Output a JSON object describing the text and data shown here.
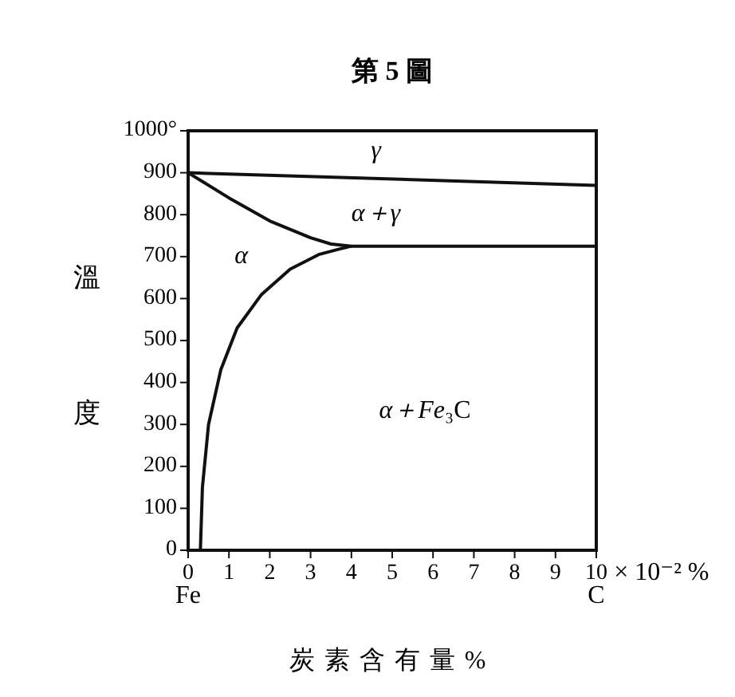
{
  "chart_data": {
    "type": "line",
    "title": "第 5 圖",
    "xlabel": "炭素含有量%",
    "ylabel": "溫 度",
    "xlim": [
      0,
      10
    ],
    "ylim": [
      0,
      1000
    ],
    "xticks": [
      0,
      1,
      2,
      3,
      4,
      5,
      6,
      7,
      8,
      9,
      10
    ],
    "yticks": [
      0,
      100,
      200,
      300,
      400,
      500,
      600,
      700,
      800,
      900,
      {
        "value": 1000,
        "label": "1000°"
      }
    ],
    "grid": false,
    "marker": "none",
    "line_style": "solid",
    "series": [
      {
        "color": "#111111",
        "x": [
          0,
          10
        ],
        "values": [
          900,
          870
        ]
      },
      {
        "color": "#111111",
        "x": [
          0,
          1,
          2,
          3,
          3.5,
          4,
          6,
          8,
          10
        ],
        "values": [
          900,
          840,
          785,
          745,
          730,
          725,
          725,
          725,
          725
        ]
      },
      {
        "color": "#111111",
        "x": [
          0.3,
          0.35,
          0.5,
          0.8,
          1.2,
          1.8,
          2.5,
          3.2,
          3.7,
          4
        ],
        "values": [
          0,
          150,
          300,
          430,
          530,
          610,
          670,
          705,
          718,
          725
        ]
      }
    ],
    "annotations": [
      "γ",
      "α＋γ",
      "α",
      "α＋Fe₃C",
      "Fe",
      "C",
      "× 10⁻² %"
    ]
  }
}
